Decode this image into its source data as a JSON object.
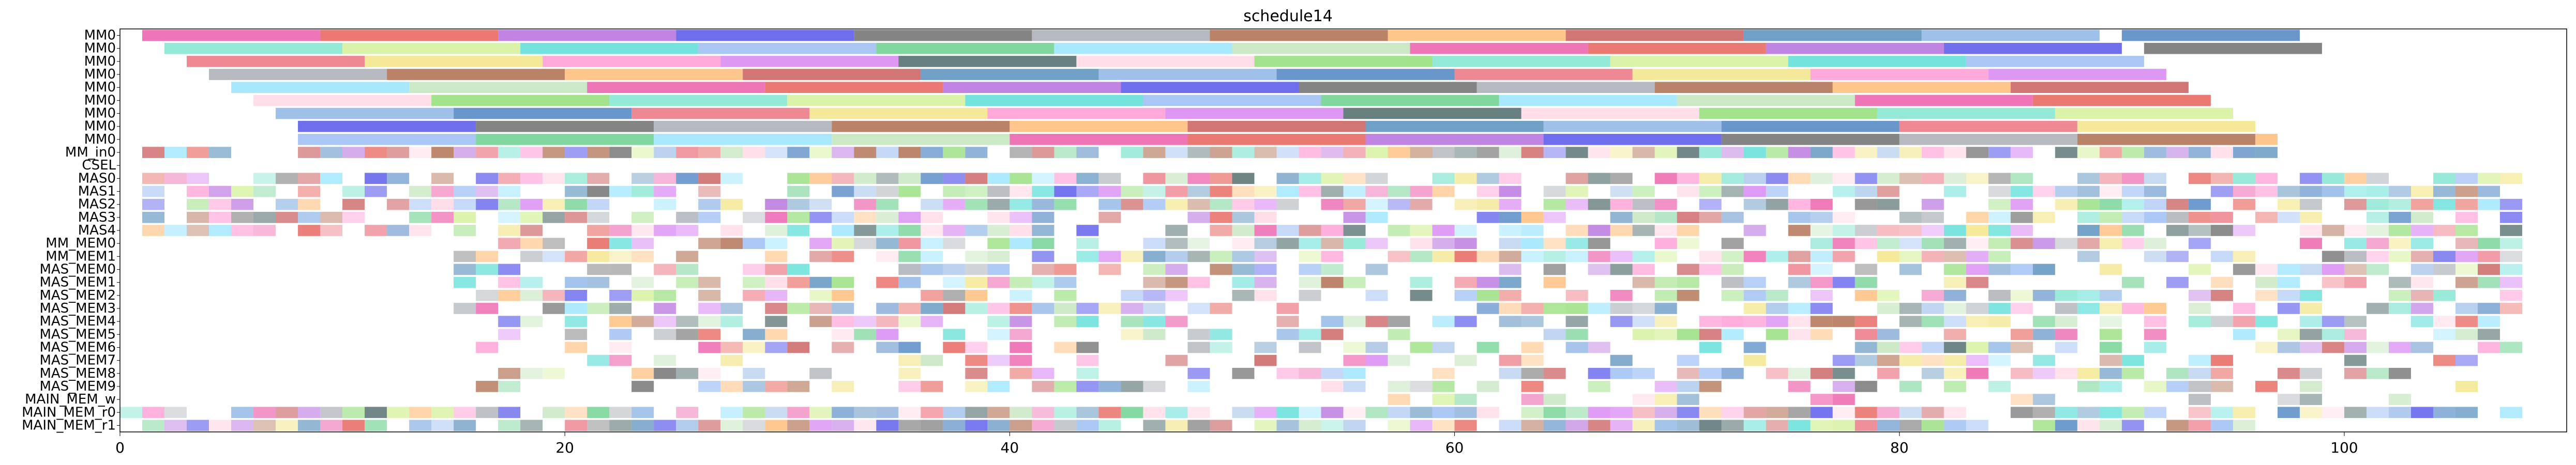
{
  "chart_data": {
    "type": "gantt",
    "title": "schedule14",
    "xlabel": "",
    "ylabel": "",
    "xlim": [
      0,
      110
    ],
    "x_ticks": [
      0,
      20,
      40,
      60,
      80,
      100
    ],
    "grid": false,
    "rows": [
      "MM0",
      "MM0",
      "MM0",
      "MM0",
      "MM0",
      "MM0",
      "MM0",
      "MM0",
      "MM0",
      "MM_in0",
      "CSEL",
      "MAS0",
      "MAS1",
      "MAS2",
      "MAS3",
      "MAS4",
      "MM_MEM0",
      "MM_MEM1",
      "MAS_MEM0",
      "MAS_MEM1",
      "MAS_MEM2",
      "MAS_MEM3",
      "MAS_MEM4",
      "MAS_MEM5",
      "MAS_MEM6",
      "MAS_MEM7",
      "MAS_MEM8",
      "MAS_MEM9",
      "MAIN_MEM_w",
      "MAIN_MEM_r0",
      "MAIN_MEM_r1"
    ],
    "palette": [
      "#e8409a",
      "#3a7bb0",
      "#7fd860",
      "#e2453c",
      "#7aa8e0",
      "#6ce0c8",
      "#a855d8",
      "#2f6fb8",
      "#ccee88",
      "#3838e8",
      "#e85a6a",
      "#40d8d0",
      "#555555",
      "#f0e070",
      "#88b0f0",
      "#9aa0a8",
      "#ff88cc",
      "#50c878",
      "#a0522d",
      "#d070f0",
      "#88e0ff",
      "#ffb060",
      "#2f4f4f",
      "#b8e0b0",
      "#c04040",
      "#ffd0e0"
    ],
    "lanes": [
      [
        [
          1,
          9
        ],
        [
          9,
          17
        ],
        [
          17,
          25
        ],
        [
          25,
          33
        ],
        [
          33,
          41
        ],
        [
          41,
          49
        ],
        [
          49,
          57
        ],
        [
          57,
          65
        ],
        [
          65,
          73
        ],
        [
          73,
          81
        ],
        [
          81,
          89
        ],
        [
          90,
          98
        ]
      ],
      [
        [
          2,
          10
        ],
        [
          10,
          18
        ],
        [
          18,
          26
        ],
        [
          26,
          34
        ],
        [
          34,
          42
        ],
        [
          42,
          50
        ],
        [
          50,
          58
        ],
        [
          58,
          66
        ],
        [
          66,
          74
        ],
        [
          74,
          82
        ],
        [
          82,
          90
        ],
        [
          91,
          99
        ]
      ],
      [
        [
          3,
          11
        ],
        [
          11,
          19
        ],
        [
          19,
          27
        ],
        [
          27,
          35
        ],
        [
          35,
          43
        ],
        [
          43,
          51
        ],
        [
          51,
          59
        ],
        [
          59,
          67
        ],
        [
          67,
          75
        ],
        [
          75,
          83
        ],
        [
          83,
          91
        ]
      ],
      [
        [
          4,
          12
        ],
        [
          12,
          20
        ],
        [
          20,
          28
        ],
        [
          28,
          36
        ],
        [
          36,
          44
        ],
        [
          44,
          52
        ],
        [
          52,
          60
        ],
        [
          60,
          68
        ],
        [
          68,
          76
        ],
        [
          76,
          84
        ],
        [
          84,
          92
        ]
      ],
      [
        [
          5,
          13
        ],
        [
          13,
          21
        ],
        [
          21,
          29
        ],
        [
          29,
          37
        ],
        [
          37,
          45
        ],
        [
          45,
          53
        ],
        [
          53,
          61
        ],
        [
          61,
          69
        ],
        [
          69,
          77
        ],
        [
          77,
          85
        ],
        [
          85,
          93
        ]
      ],
      [
        [
          6,
          14
        ],
        [
          14,
          22
        ],
        [
          22,
          30
        ],
        [
          30,
          38
        ],
        [
          38,
          46
        ],
        [
          46,
          54
        ],
        [
          54,
          62
        ],
        [
          62,
          70
        ],
        [
          70,
          78
        ],
        [
          78,
          86
        ],
        [
          86,
          94
        ]
      ],
      [
        [
          7,
          15
        ],
        [
          15,
          23
        ],
        [
          23,
          31
        ],
        [
          31,
          39
        ],
        [
          39,
          47
        ],
        [
          47,
          55
        ],
        [
          55,
          63
        ],
        [
          63,
          71
        ],
        [
          71,
          79
        ],
        [
          79,
          87
        ],
        [
          87,
          95
        ]
      ],
      [
        [
          8,
          16
        ],
        [
          16,
          24
        ],
        [
          24,
          32
        ],
        [
          32,
          40
        ],
        [
          40,
          48
        ],
        [
          48,
          56
        ],
        [
          56,
          64
        ],
        [
          64,
          72
        ],
        [
          72,
          80
        ],
        [
          80,
          88
        ],
        [
          88,
          96
        ]
      ],
      [
        [
          8,
          16
        ],
        [
          16,
          24
        ],
        [
          24,
          32
        ],
        [
          32,
          40
        ],
        [
          40,
          48
        ],
        [
          48,
          56
        ],
        [
          56,
          64
        ],
        [
          64,
          72
        ],
        [
          72,
          80
        ],
        [
          80,
          88
        ],
        [
          88,
          96
        ],
        [
          96,
          97
        ]
      ]
    ],
    "row_extents": {
      "9": [
        [
          0,
          5
        ],
        [
          8,
          97
        ]
      ],
      "11": [
        [
          1,
          108
        ]
      ],
      "12": [
        [
          1,
          108
        ]
      ],
      "13": [
        [
          1,
          108
        ]
      ],
      "14": [
        [
          1,
          108
        ]
      ],
      "15": [
        [
          1,
          108
        ]
      ],
      "16": [
        [
          15,
          108
        ]
      ],
      "17": [
        [
          15,
          108
        ]
      ],
      "18": [
        [
          15,
          108
        ]
      ],
      "19": [
        [
          15,
          108
        ]
      ],
      "20": [
        [
          15,
          108
        ]
      ],
      "21": [
        [
          15,
          108
        ]
      ],
      "22": [
        [
          16,
          108
        ]
      ],
      "23": [
        [
          16,
          108
        ]
      ],
      "24": [
        [
          16,
          108
        ]
      ],
      "25": [
        [
          17,
          108
        ]
      ],
      "26": [
        [
          17,
          108
        ]
      ],
      "27": [
        [
          16,
          108
        ]
      ],
      "28": [
        [
          54,
          110
        ]
      ],
      "29": [
        [
          0,
          108
        ]
      ],
      "30": [
        [
          0,
          96
        ]
      ]
    },
    "row_sparsity": {
      "9": 0.05,
      "11": 0.25,
      "12": 0.25,
      "13": 0.25,
      "14": 0.3,
      "15": 0.3,
      "16": 0.3,
      "17": 0.3,
      "18": 0.35,
      "19": 0.35,
      "20": 0.35,
      "21": 0.35,
      "22": 0.4,
      "23": 0.45,
      "24": 0.45,
      "25": 0.5,
      "26": 0.5,
      "27": 0.5,
      "28": 0.7,
      "29": 0.15,
      "30": 0.1
    }
  }
}
